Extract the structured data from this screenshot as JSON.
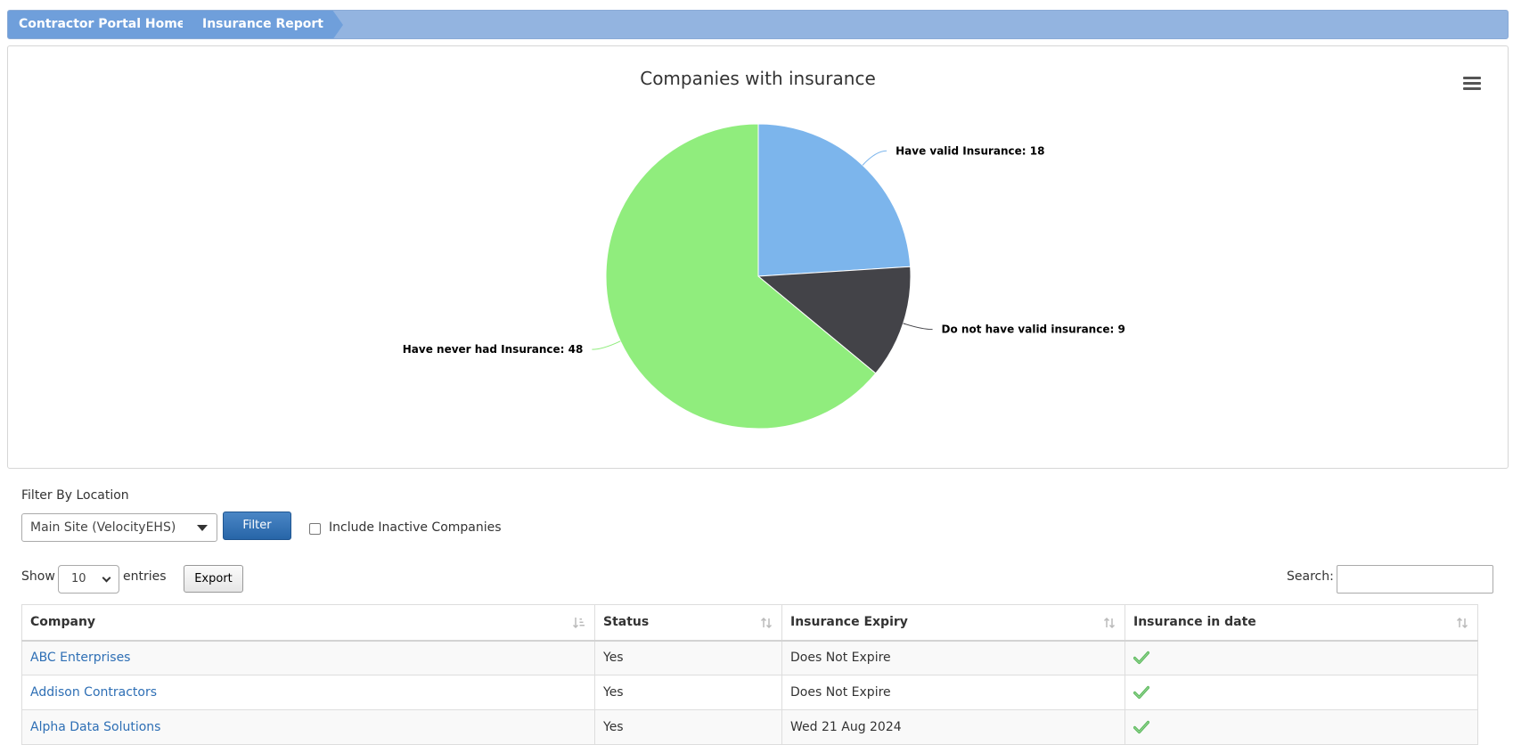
{
  "breadcrumb": {
    "home": "Contractor Portal Home",
    "current": "Insurance Report"
  },
  "chart_data": {
    "type": "pie",
    "title": "Companies with insurance",
    "categories": [
      "Have valid Insurance",
      "Do not have valid insurance",
      "Have never had Insurance"
    ],
    "values": [
      18,
      9,
      48
    ],
    "labels": [
      "Have valid Insurance: 18",
      "Do not have valid insurance: 9",
      "Have never had Insurance: 48"
    ],
    "colors": [
      "#7cb5ec",
      "#434348",
      "#90ed7d"
    ]
  },
  "chart_menu": {
    "icon": "hamburger-menu-icon"
  },
  "filter": {
    "label": "Filter By Location",
    "location_value": "Main Site (VelocityEHS)",
    "button": "Filter",
    "include_inactive_label": "Include Inactive Companies",
    "include_inactive_checked": false
  },
  "table_controls": {
    "show_label": "Show",
    "entries_value": "10",
    "entries_label": "entries",
    "export_label": "Export",
    "search_label": "Search:",
    "search_value": ""
  },
  "table": {
    "headers": [
      "Company",
      "Status",
      "Insurance Expiry",
      "Insurance in date"
    ],
    "rows": [
      {
        "company": "ABC Enterprises",
        "status": "Yes",
        "expiry": "Does Not Expire",
        "in_date_icon": "green-check-icon"
      },
      {
        "company": "Addison Contractors",
        "status": "Yes",
        "expiry": "Does Not Expire",
        "in_date_icon": "green-check-icon"
      },
      {
        "company": "Alpha Data Solutions",
        "status": "Yes",
        "expiry": "Wed 21 Aug 2024",
        "in_date_icon": "green-check-icon"
      }
    ]
  }
}
